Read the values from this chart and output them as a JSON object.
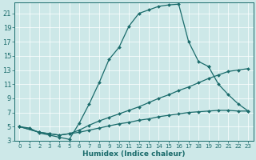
{
  "bg_color": "#cde8e8",
  "line_color": "#1a6b6b",
  "xlabel": "Humidex (Indice chaleur)",
  "xlim": [
    -0.5,
    23.5
  ],
  "ylim": [
    3,
    22.5
  ],
  "xticks": [
    0,
    1,
    2,
    3,
    4,
    5,
    6,
    7,
    8,
    9,
    10,
    11,
    12,
    13,
    14,
    15,
    16,
    17,
    18,
    19,
    20,
    21,
    22,
    23
  ],
  "yticks": [
    3,
    5,
    7,
    9,
    11,
    13,
    15,
    17,
    19,
    21
  ],
  "curve1_x": [
    0,
    1,
    2,
    3,
    4,
    5,
    6,
    7,
    8,
    9,
    10,
    11,
    12,
    13,
    14,
    15,
    16,
    17,
    18,
    19
  ],
  "curve1_y": [
    5.0,
    4.8,
    4.1,
    3.8,
    3.5,
    3.2,
    5.5,
    8.2,
    11.2,
    14.5,
    16.2,
    19.2,
    21.0,
    21.5,
    22.0,
    22.2,
    22.3,
    17.0,
    14.2,
    13.5
  ],
  "curve2_x": [
    19,
    20,
    21,
    22,
    23
  ],
  "curve2_y": [
    13.5,
    11.0,
    9.5,
    8.2,
    7.2
  ],
  "curve3_x": [
    0,
    2,
    3,
    4,
    5,
    6,
    7,
    8,
    9,
    10,
    11,
    12,
    13,
    14,
    15,
    16,
    17,
    18,
    19,
    20,
    21,
    22,
    23
  ],
  "curve3_y": [
    5.0,
    4.2,
    4.0,
    3.8,
    4.0,
    4.5,
    5.2,
    5.8,
    6.3,
    6.8,
    7.3,
    7.8,
    8.4,
    9.0,
    9.5,
    10.1,
    10.6,
    11.2,
    11.8,
    12.3,
    12.8,
    13.0,
    13.2
  ],
  "curve4_x": [
    0,
    2,
    3,
    4,
    5,
    6,
    7,
    8,
    9,
    10,
    11,
    12,
    13,
    14,
    15,
    16,
    17,
    18,
    19,
    20,
    21,
    22,
    23
  ],
  "curve4_y": [
    5.0,
    4.2,
    4.0,
    3.8,
    4.0,
    4.2,
    4.5,
    4.8,
    5.1,
    5.4,
    5.6,
    5.9,
    6.1,
    6.4,
    6.6,
    6.8,
    7.0,
    7.1,
    7.2,
    7.3,
    7.3,
    7.2,
    7.2
  ]
}
